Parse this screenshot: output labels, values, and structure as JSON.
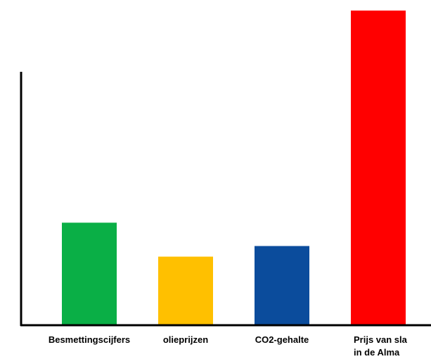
{
  "chart_data": {
    "type": "bar",
    "title": "",
    "xlabel": "",
    "ylabel": "",
    "categories": [
      "Besmettingscijfers",
      "olieprijzen",
      "CO2-gehalte",
      "Prijs van sla in de Alma"
    ],
    "category_lines": [
      [
        "Besmettingscijfers"
      ],
      [
        "olieprijzen"
      ],
      [
        "CO2-gehalte"
      ],
      [
        "Prijs van sla",
        "in de Alma"
      ]
    ],
    "values": [
      145,
      97,
      112,
      445
    ],
    "colors": [
      "#0aaf46",
      "#ffc000",
      "#0b4c9c",
      "#ff0000"
    ],
    "ylim": [
      0,
      445
    ],
    "y_axis_visible": true,
    "y_ticks": false,
    "grid": false,
    "legend": "none"
  }
}
